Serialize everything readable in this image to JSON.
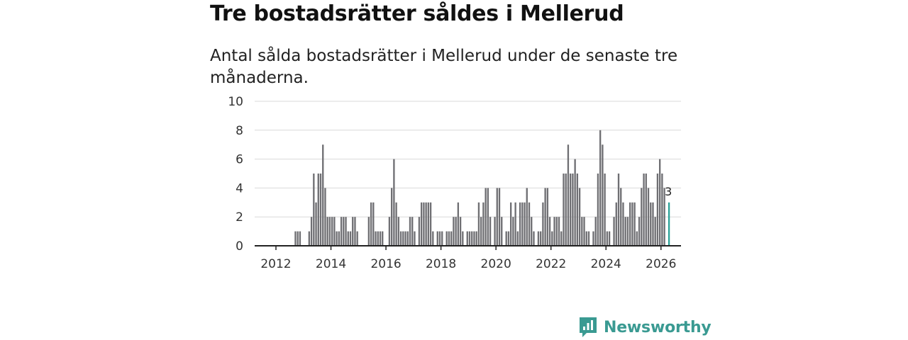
{
  "header": {
    "title": "Tre bostadsrätter såldes i Mellerud",
    "subtitle": "Antal sålda bostadsrätter i Mellerud under de senaste tre månaderna."
  },
  "brand": {
    "name": "Newsworthy",
    "color": "#3a9a92",
    "icon": "newsworthy-logo-icon"
  },
  "chart_data": {
    "type": "bar",
    "title": "Tre bostadsrätter såldes i Mellerud",
    "subtitle": "Antal sålda bostadsrätter i Mellerud under de senaste tre månaderna.",
    "xlabel": "",
    "ylabel": "",
    "ylim": [
      0,
      10
    ],
    "yticks": [
      "0",
      "2",
      "4",
      "6",
      "8",
      "10"
    ],
    "xticks": [
      "2012",
      "2014",
      "2016",
      "2018",
      "2020",
      "2022",
      "2024",
      "2026"
    ],
    "x_start": "2011-01",
    "frequency": "monthly",
    "grid": true,
    "bar_color": "#6f6f73",
    "highlight_color": "#2aa198",
    "highlight_label": "3",
    "values": [
      0,
      0,
      0,
      0,
      0,
      0,
      0,
      0,
      0,
      0,
      0,
      0,
      0,
      0,
      0,
      0,
      0,
      0,
      0,
      0,
      1,
      1,
      1,
      0,
      0,
      0,
      1,
      2,
      5,
      3,
      5,
      5,
      7,
      4,
      2,
      2,
      2,
      2,
      1,
      1,
      2,
      2,
      2,
      1,
      1,
      2,
      2,
      1,
      0,
      0,
      0,
      0,
      2,
      3,
      3,
      1,
      1,
      1,
      1,
      0,
      0,
      2,
      4,
      6,
      3,
      2,
      1,
      1,
      1,
      1,
      2,
      2,
      1,
      0,
      2,
      3,
      3,
      3,
      3,
      3,
      1,
      0,
      1,
      1,
      1,
      0,
      1,
      1,
      1,
      2,
      2,
      3,
      2,
      1,
      0,
      1,
      1,
      1,
      1,
      1,
      3,
      2,
      3,
      4,
      4,
      2,
      0,
      2,
      4,
      4,
      2,
      0,
      1,
      1,
      3,
      2,
      3,
      1,
      3,
      3,
      3,
      4,
      3,
      2,
      1,
      0,
      1,
      1,
      3,
      4,
      4,
      2,
      1,
      2,
      2,
      2,
      1,
      5,
      5,
      7,
      5,
      5,
      6,
      5,
      4,
      2,
      2,
      1,
      1,
      0,
      1,
      2,
      5,
      8,
      7,
      5,
      1,
      1,
      0,
      2,
      3,
      5,
      4,
      3,
      2,
      2,
      3,
      3,
      3,
      1,
      2,
      4,
      5,
      5,
      4,
      3,
      3,
      2,
      5,
      6,
      5,
      4,
      0,
      3
    ]
  }
}
